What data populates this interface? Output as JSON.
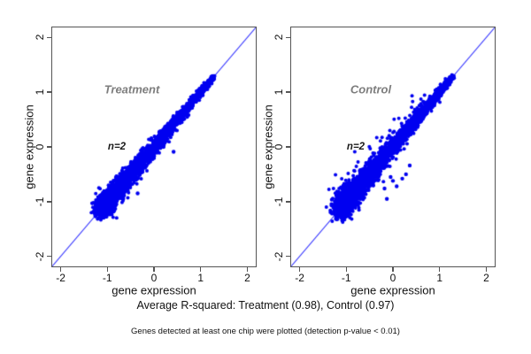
{
  "figure": {
    "caption_r2": "Average R-squared: Treatment (0.98), Control (0.97)",
    "footnote": "Genes detected at least one chip were plotted (detection p-value < 0.01)"
  },
  "chart_data": {
    "type": "scatter",
    "layout": "two-panel side-by-side, identity line, dense gene-expression cloud",
    "point_color": "#0000f0",
    "line_color": "#3030ff",
    "frame_color": "#555555",
    "panels": [
      {
        "title": "Treatment",
        "annotation": "n=2",
        "r_squared": 0.98,
        "xlabel": "gene expression",
        "ylabel": "gene expression",
        "xlim": [
          -2.2,
          2.2
        ],
        "ylim": [
          -2.2,
          2.2
        ],
        "x_ticks": [
          -2,
          -1,
          0,
          1,
          2
        ],
        "y_ticks": [
          -2,
          -1,
          0,
          1,
          2
        ],
        "identity_line": {
          "from": [
            -2.2,
            -2.2
          ],
          "to": [
            2.2,
            2.2
          ]
        },
        "cloud": {
          "seed": 7,
          "n": 3000,
          "t_min": -1.12,
          "t_max": 1.28,
          "skew": 1.55,
          "sd_low": 0.105,
          "sd_high": 0.02,
          "stray_frac": 0.0,
          "stray_scale": 0.0,
          "stray_t_cutoff": 0.75
        },
        "outliers": [
          [
            0.42,
            -0.09
          ],
          [
            -0.35,
            -0.85
          ]
        ]
      },
      {
        "title": "Control",
        "annotation": "n=2",
        "r_squared": 0.97,
        "xlabel": "gene expression",
        "ylabel": "gene expression",
        "xlim": [
          -2.2,
          2.2
        ],
        "ylim": [
          -2.2,
          2.2
        ],
        "x_ticks": [
          -2,
          -1,
          0,
          1,
          2
        ],
        "y_ticks": [
          -2,
          -1,
          0,
          1,
          2
        ],
        "identity_line": {
          "from": [
            -2.2,
            -2.2
          ],
          "to": [
            2.2,
            2.2
          ]
        },
        "cloud": {
          "seed": 13,
          "n": 3000,
          "t_min": -1.12,
          "t_max": 1.28,
          "skew": 1.55,
          "sd_low": 0.12,
          "sd_high": 0.025,
          "stray_frac": 0.05,
          "stray_scale": 0.16,
          "stray_t_cutoff": 0.75
        },
        "outliers": [
          [
            -0.18,
            -0.76
          ],
          [
            -0.13,
            -0.95
          ],
          [
            0.0,
            -0.62
          ],
          [
            0.08,
            -0.72
          ],
          [
            0.36,
            -0.34
          ],
          [
            0.28,
            -0.5
          ],
          [
            0.2,
            -0.58
          ],
          [
            -0.05,
            -0.55
          ]
        ]
      }
    ]
  }
}
